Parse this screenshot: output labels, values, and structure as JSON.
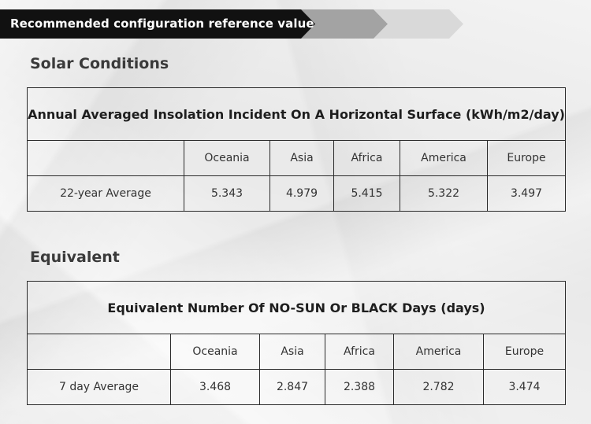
{
  "banner": {
    "title": "Recommended configuration reference value",
    "colors": [
      "#111111",
      "#a3a3a3",
      "#d9d9d9"
    ]
  },
  "solar": {
    "section_title": "Solar Conditions",
    "table_title": "Annual Averaged Insolation Incident On A Horizontal Surface (kWh/m2/day)",
    "columns": [
      "Oceania",
      "Asia",
      "Africa",
      "America",
      "Europe"
    ],
    "row_label": "22-year Average",
    "values": [
      "5.343",
      "4.979",
      "5.415",
      "5.322",
      "3.497"
    ]
  },
  "equivalent": {
    "section_title": "Equivalent",
    "table_title": "Equivalent Number Of NO-SUN Or BLACK Days (days)",
    "columns": [
      "Oceania",
      "Asia",
      "Africa",
      "America",
      "Europe"
    ],
    "row_label": "7 day Average",
    "values": [
      "3.468",
      "2.847",
      "2.388",
      "2.782",
      "3.474"
    ]
  }
}
